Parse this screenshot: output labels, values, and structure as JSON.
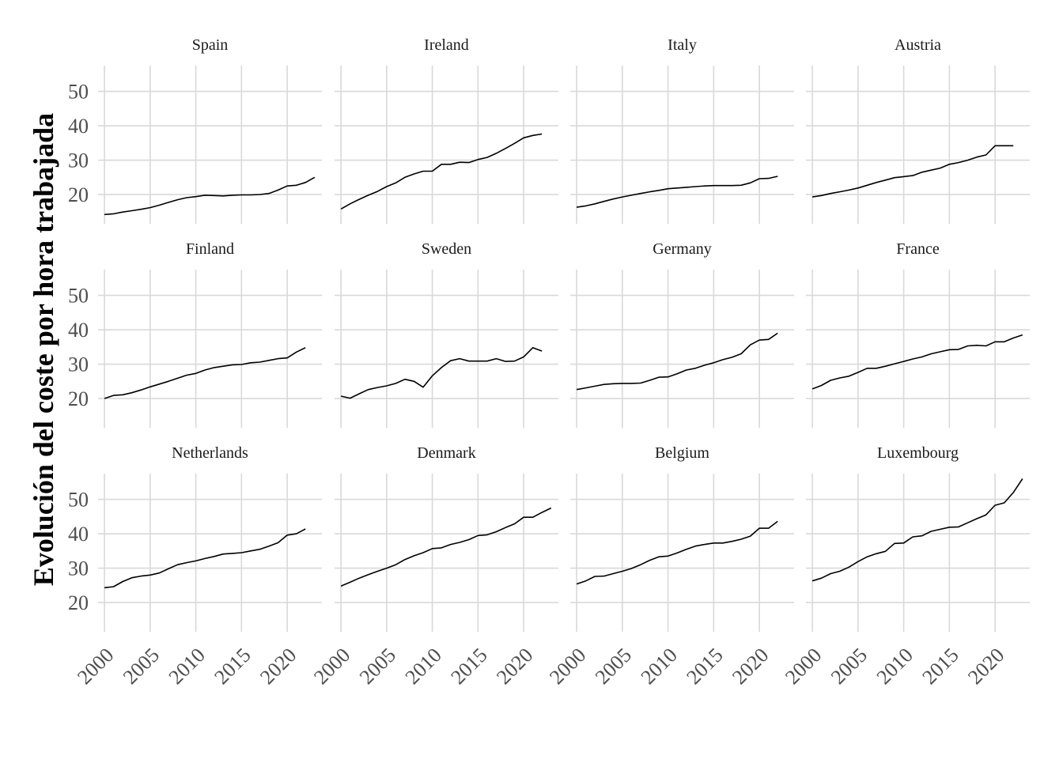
{
  "chart_data": {
    "type": "line",
    "layout": "facet-grid",
    "facet_rows": 3,
    "facet_cols": 4,
    "title": "",
    "xlabel": "",
    "ylabel": "Evolución del coste por hora trabajada",
    "x_ticks": [
      2000,
      2005,
      2010,
      2015,
      2020
    ],
    "x_tick_labels": [
      "2000",
      "2005",
      "2010",
      "2015",
      "2020"
    ],
    "y_ticks": [
      20,
      30,
      40,
      50
    ],
    "y_tick_labels": [
      "20",
      "30",
      "40",
      "50"
    ],
    "xlim": [
      1999.3,
      2023.8
    ],
    "ylim": [
      11.5,
      57.5
    ],
    "grid": true,
    "line_color": "#000000",
    "grid_color": "#d9d9d9",
    "panels": [
      {
        "name": "Spain",
        "x": [
          2000,
          2001,
          2002,
          2003,
          2004,
          2005,
          2006,
          2007,
          2008,
          2009,
          2010,
          2011,
          2012,
          2013,
          2014,
          2015,
          2016,
          2017,
          2018,
          2019,
          2020,
          2021,
          2022,
          2023
        ],
        "values": [
          14.2,
          14.4,
          14.9,
          15.3,
          15.7,
          16.2,
          16.9,
          17.7,
          18.5,
          19.1,
          19.4,
          19.8,
          19.7,
          19.6,
          19.8,
          19.9,
          19.9,
          20.0,
          20.3,
          21.3,
          22.5,
          22.7,
          23.5,
          25.0
        ]
      },
      {
        "name": "Ireland",
        "x": [
          2000,
          2001,
          2002,
          2003,
          2004,
          2005,
          2006,
          2007,
          2008,
          2009,
          2010,
          2011,
          2012,
          2013,
          2014,
          2015,
          2016,
          2017,
          2018,
          2019,
          2020,
          2021,
          2022
        ],
        "values": [
          15.8,
          17.3,
          18.6,
          19.8,
          20.9,
          22.3,
          23.4,
          25.0,
          26.0,
          26.8,
          26.8,
          28.8,
          28.8,
          29.4,
          29.3,
          30.2,
          30.8,
          32.0,
          33.4,
          34.9,
          36.5,
          37.2,
          37.6
        ]
      },
      {
        "name": "Italy",
        "x": [
          2000,
          2001,
          2002,
          2003,
          2004,
          2005,
          2006,
          2007,
          2008,
          2009,
          2010,
          2011,
          2012,
          2013,
          2014,
          2015,
          2016,
          2017,
          2018,
          2019,
          2020,
          2021,
          2022
        ],
        "values": [
          16.3,
          16.7,
          17.3,
          18.0,
          18.7,
          19.3,
          19.8,
          20.3,
          20.8,
          21.2,
          21.7,
          21.9,
          22.1,
          22.3,
          22.5,
          22.6,
          22.6,
          22.6,
          22.7,
          23.4,
          24.6,
          24.7,
          25.3
        ]
      },
      {
        "name": "Austria",
        "x": [
          2000,
          2001,
          2002,
          2003,
          2004,
          2005,
          2006,
          2007,
          2008,
          2009,
          2010,
          2011,
          2012,
          2013,
          2014,
          2015,
          2016,
          2017,
          2018,
          2019,
          2020,
          2021,
          2022
        ],
        "values": [
          19.3,
          19.7,
          20.3,
          20.8,
          21.3,
          21.9,
          22.7,
          23.5,
          24.2,
          24.9,
          25.2,
          25.5,
          26.5,
          27.1,
          27.7,
          28.8,
          29.3,
          30.0,
          30.9,
          31.5,
          34.2,
          34.2,
          34.2
        ]
      },
      {
        "name": "Finland",
        "x": [
          2000,
          2001,
          2002,
          2003,
          2004,
          2005,
          2006,
          2007,
          2008,
          2009,
          2010,
          2011,
          2012,
          2013,
          2014,
          2015,
          2016,
          2017,
          2018,
          2019,
          2020,
          2021,
          2022
        ],
        "values": [
          20.0,
          20.9,
          21.1,
          21.7,
          22.5,
          23.4,
          24.2,
          25.0,
          25.9,
          26.8,
          27.3,
          28.3,
          29.0,
          29.4,
          29.8,
          29.9,
          30.4,
          30.6,
          31.1,
          31.6,
          31.8,
          33.5,
          34.8
        ]
      },
      {
        "name": "Sweden",
        "x": [
          2000,
          2001,
          2002,
          2003,
          2004,
          2005,
          2006,
          2007,
          2008,
          2009,
          2010,
          2011,
          2012,
          2013,
          2014,
          2015,
          2016,
          2017,
          2018,
          2019,
          2020,
          2021,
          2022
        ],
        "values": [
          20.7,
          20.1,
          21.4,
          22.6,
          23.2,
          23.7,
          24.4,
          25.6,
          25.0,
          23.3,
          26.6,
          29.0,
          31.0,
          31.6,
          30.9,
          30.9,
          30.9,
          31.6,
          30.8,
          30.9,
          32.1,
          34.8,
          33.8
        ]
      },
      {
        "name": "Germany",
        "x": [
          2000,
          2001,
          2002,
          2003,
          2004,
          2005,
          2006,
          2007,
          2008,
          2009,
          2010,
          2011,
          2012,
          2013,
          2014,
          2015,
          2016,
          2017,
          2018,
          2019,
          2020,
          2021,
          2022
        ],
        "values": [
          22.6,
          23.1,
          23.6,
          24.1,
          24.3,
          24.4,
          24.4,
          24.5,
          25.3,
          26.2,
          26.3,
          27.2,
          28.3,
          28.8,
          29.7,
          30.4,
          31.3,
          32.0,
          33.0,
          35.6,
          37.0,
          37.2,
          39.0
        ]
      },
      {
        "name": "France",
        "x": [
          2000,
          2001,
          2002,
          2003,
          2004,
          2005,
          2006,
          2007,
          2008,
          2009,
          2010,
          2011,
          2012,
          2013,
          2014,
          2015,
          2016,
          2017,
          2018,
          2019,
          2020,
          2021,
          2022,
          2023
        ],
        "values": [
          22.8,
          23.8,
          25.3,
          26.0,
          26.5,
          27.6,
          28.8,
          28.8,
          29.4,
          30.1,
          30.8,
          31.5,
          32.1,
          33.0,
          33.6,
          34.2,
          34.3,
          35.3,
          35.5,
          35.3,
          36.5,
          36.5,
          37.6,
          38.5
        ]
      },
      {
        "name": "Netherlands",
        "x": [
          2000,
          2001,
          2002,
          2003,
          2004,
          2005,
          2006,
          2007,
          2008,
          2009,
          2010,
          2011,
          2012,
          2013,
          2014,
          2015,
          2016,
          2017,
          2018,
          2019,
          2020,
          2021,
          2022
        ],
        "values": [
          24.3,
          24.6,
          26.1,
          27.2,
          27.7,
          28.0,
          28.6,
          29.8,
          31.0,
          31.6,
          32.1,
          32.8,
          33.4,
          34.1,
          34.3,
          34.5,
          35.0,
          35.5,
          36.4,
          37.4,
          39.6,
          40.0,
          41.4
        ]
      },
      {
        "name": "Denmark",
        "x": [
          2000,
          2001,
          2002,
          2003,
          2004,
          2005,
          2006,
          2007,
          2008,
          2009,
          2010,
          2011,
          2012,
          2013,
          2014,
          2015,
          2016,
          2017,
          2018,
          2019,
          2020,
          2021,
          2022,
          2023
        ],
        "values": [
          24.8,
          25.9,
          27.1,
          28.1,
          29.1,
          30.0,
          31.0,
          32.5,
          33.6,
          34.5,
          35.7,
          35.9,
          36.9,
          37.5,
          38.3,
          39.5,
          39.7,
          40.6,
          41.8,
          42.9,
          44.8,
          44.8,
          46.2,
          47.5
        ]
      },
      {
        "name": "Belgium",
        "x": [
          2000,
          2001,
          2002,
          2003,
          2004,
          2005,
          2006,
          2007,
          2008,
          2009,
          2010,
          2011,
          2012,
          2013,
          2014,
          2015,
          2016,
          2017,
          2018,
          2019,
          2020,
          2021,
          2022
        ],
        "values": [
          25.4,
          26.3,
          27.6,
          27.7,
          28.4,
          29.1,
          29.9,
          31.0,
          32.3,
          33.3,
          33.5,
          34.4,
          35.5,
          36.4,
          36.9,
          37.3,
          37.3,
          37.8,
          38.4,
          39.3,
          41.6,
          41.6,
          43.6
        ]
      },
      {
        "name": "Luxembourg",
        "x": [
          2000,
          2001,
          2002,
          2003,
          2004,
          2005,
          2006,
          2007,
          2008,
          2009,
          2010,
          2011,
          2012,
          2013,
          2014,
          2015,
          2016,
          2017,
          2018,
          2019,
          2020,
          2021,
          2022,
          2023
        ],
        "values": [
          26.3,
          27.1,
          28.4,
          29.1,
          30.3,
          31.9,
          33.3,
          34.2,
          34.9,
          37.2,
          37.3,
          39.1,
          39.4,
          40.7,
          41.3,
          41.9,
          42.0,
          43.2,
          44.4,
          45.5,
          48.3,
          49.0,
          52.0,
          56.0
        ]
      }
    ]
  }
}
